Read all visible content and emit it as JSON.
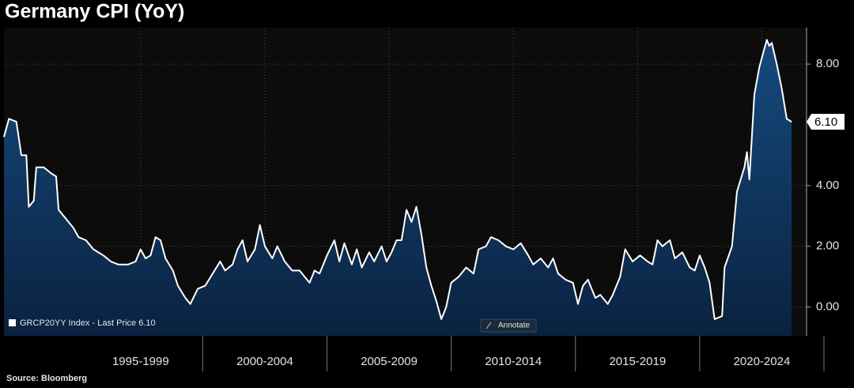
{
  "chart_data": {
    "type": "area",
    "title": "Germany CPI (YoY)",
    "source": "Source: Bloomberg",
    "annotate_button": "Annotate",
    "series": [
      {
        "name": "GRCP20YY Index - Last Price 6.10",
        "color": "#ffffff",
        "fill": "#0e2f55",
        "x": [
          1992.0,
          1992.2,
          1992.5,
          1992.7,
          1992.9,
          1993.0,
          1993.2,
          1993.3,
          1993.6,
          1993.9,
          1994.1,
          1994.2,
          1994.5,
          1994.8,
          1995.0,
          1995.3,
          1995.6,
          1996.0,
          1996.3,
          1996.6,
          1997.0,
          1997.3,
          1997.5,
          1997.7,
          1997.9,
          1998.1,
          1998.3,
          1998.5,
          1998.8,
          1999.0,
          1999.3,
          1999.5,
          1999.8,
          2000.1,
          2000.4,
          2000.7,
          2000.9,
          2001.2,
          2001.4,
          2001.6,
          2001.8,
          2002.1,
          2002.3,
          2002.5,
          2002.8,
          2003.0,
          2003.3,
          2003.6,
          2003.9,
          2004.1,
          2004.3,
          2004.5,
          2004.7,
          2005.0,
          2005.3,
          2005.5,
          2005.7,
          2006.0,
          2006.2,
          2006.4,
          2006.7,
          2006.9,
          2007.2,
          2007.4,
          2007.6,
          2007.8,
          2008.0,
          2008.2,
          2008.4,
          2008.6,
          2008.8,
          2009.0,
          2009.2,
          2009.4,
          2009.6,
          2009.8,
          2010.0,
          2010.3,
          2010.6,
          2010.9,
          2011.1,
          2011.4,
          2011.6,
          2011.9,
          2012.2,
          2012.5,
          2012.8,
          2013.1,
          2013.3,
          2013.6,
          2013.9,
          2014.1,
          2014.3,
          2014.6,
          2014.9,
          2015.1,
          2015.3,
          2015.5,
          2015.8,
          2016.0,
          2016.3,
          2016.5,
          2016.8,
          2017.0,
          2017.3,
          2017.6,
          2017.9,
          2018.1,
          2018.3,
          2018.5,
          2018.8,
          2019.0,
          2019.3,
          2019.6,
          2019.8,
          2020.0,
          2020.2,
          2020.4,
          2020.6,
          2020.9,
          2021.0,
          2021.3,
          2021.5,
          2021.8,
          2021.9,
          2022.0,
          2022.2,
          2022.4,
          2022.7,
          2022.8,
          2022.9,
          2023.1,
          2023.3,
          2023.5,
          2023.7
        ],
        "values": [
          5.6,
          6.2,
          6.1,
          5.0,
          5.0,
          3.3,
          3.5,
          4.6,
          4.6,
          4.4,
          4.3,
          3.2,
          2.9,
          2.6,
          2.3,
          2.2,
          1.9,
          1.7,
          1.5,
          1.4,
          1.4,
          1.5,
          1.9,
          1.6,
          1.7,
          2.3,
          2.2,
          1.6,
          1.2,
          0.7,
          0.3,
          0.1,
          0.6,
          0.7,
          1.1,
          1.5,
          1.2,
          1.4,
          1.9,
          2.2,
          1.5,
          1.9,
          2.7,
          2.0,
          1.6,
          2.0,
          1.5,
          1.2,
          1.2,
          1.0,
          0.8,
          1.2,
          1.1,
          1.7,
          2.2,
          1.5,
          2.1,
          1.4,
          1.9,
          1.3,
          1.8,
          1.5,
          2.0,
          1.5,
          1.8,
          2.2,
          2.2,
          3.2,
          2.8,
          3.3,
          2.4,
          1.3,
          0.7,
          0.2,
          -0.4,
          0.0,
          0.8,
          1.0,
          1.3,
          1.1,
          1.9,
          2.0,
          2.3,
          2.2,
          2.0,
          1.9,
          2.1,
          1.7,
          1.4,
          1.6,
          1.3,
          1.6,
          1.1,
          0.9,
          0.8,
          0.1,
          0.7,
          0.9,
          0.3,
          0.4,
          0.1,
          0.4,
          1.0,
          1.9,
          1.5,
          1.7,
          1.5,
          1.4,
          2.2,
          2.0,
          2.2,
          1.6,
          1.8,
          1.3,
          1.2,
          1.7,
          1.3,
          0.8,
          -0.4,
          -0.3,
          1.3,
          2.0,
          3.8,
          4.6,
          5.1,
          4.2,
          7.0,
          7.9,
          8.8,
          8.6,
          8.7,
          8.0,
          7.2,
          6.2,
          6.1
        ]
      }
    ],
    "xlim": [
      1992.0,
      2024.3
    ],
    "xticks": [
      {
        "value": 1997.5,
        "label": "1995-1999"
      },
      {
        "value": 2002.5,
        "label": "2000-2004"
      },
      {
        "value": 2007.5,
        "label": "2005-2009"
      },
      {
        "value": 2012.5,
        "label": "2010-2014"
      },
      {
        "value": 2017.5,
        "label": "2015-2019"
      },
      {
        "value": 2022.5,
        "label": "2020-2024"
      }
    ],
    "ylim": [
      -0.95,
      9.2
    ],
    "yticks": [
      {
        "value": 0,
        "label": "0.00"
      },
      {
        "value": 2,
        "label": "2.00"
      },
      {
        "value": 4,
        "label": "4.00"
      },
      {
        "value": 8,
        "label": "8.00"
      }
    ],
    "markers": [
      {
        "value": 6.1,
        "label": "6.10"
      }
    ],
    "grid": true
  }
}
